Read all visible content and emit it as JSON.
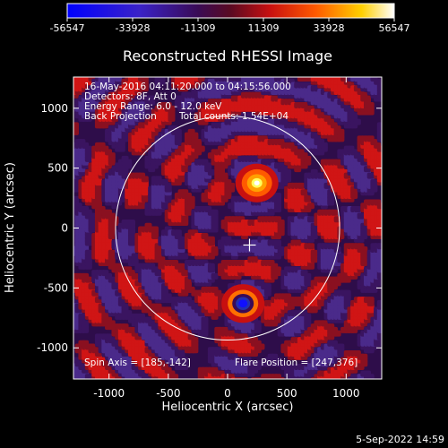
{
  "chart_data": {
    "type": "heatmap",
    "title": "Reconstructed RHESSI Image",
    "xlabel": "Heliocentric X (arcsec)",
    "ylabel": "Heliocentric Y (arcsec)",
    "xlim": [
      -1300,
      1300
    ],
    "ylim": [
      -1260,
      1260
    ],
    "x_ticks": [
      -1000,
      -500,
      0,
      500,
      1000
    ],
    "y_ticks": [
      -1000,
      -500,
      0,
      500,
      1000
    ],
    "x_tick_labels": [
      "-1000",
      "-500",
      "0",
      "500",
      "1000"
    ],
    "y_tick_labels": [
      "-1000",
      "-500",
      "0",
      "500",
      "1000"
    ],
    "colorbar": {
      "min": -56547,
      "max": 56547,
      "tick_labels": [
        "-56547",
        "-33928",
        "-11309",
        "11309",
        "33928",
        "56547"
      ]
    },
    "solar_limb_radius_arcsec": 945,
    "sun_center_marker": [
      185,
      -142
    ],
    "bright_source": [
      247,
      376
    ],
    "dark_source": [
      130,
      -630
    ],
    "info_lines": [
      "16-May-2016 04:11:20.000 to 04:15:56.000",
      "Detectors: 8F, Att 0",
      "Energy Range: 6.0 - 12.0 keV",
      "Back Projection",
      "Total counts: 1.54E+04"
    ],
    "spin_axis_text": "Spin Axis = [185,-142]",
    "flare_position_text": "Flare Position = [247,376]"
  },
  "footer": {
    "date_stamp": "5-Sep-2022 14:59"
  }
}
